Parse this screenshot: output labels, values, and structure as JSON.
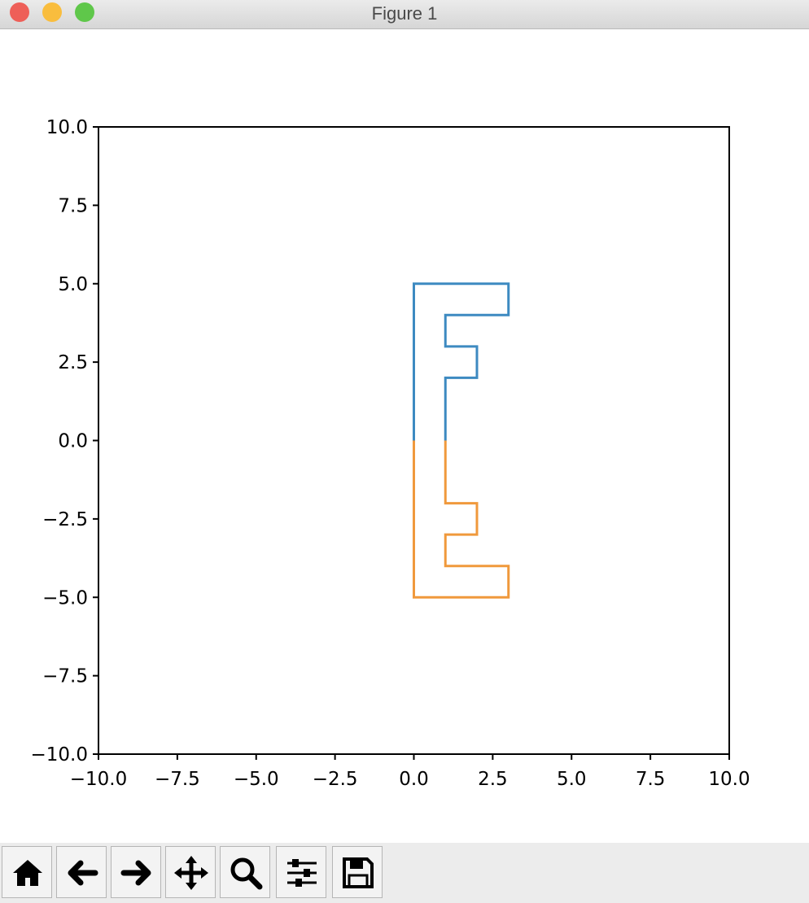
{
  "window_title": "Figure 1",
  "chart_data": {
    "type": "line",
    "xlim": [
      -10,
      10
    ],
    "ylim": [
      -10,
      10
    ],
    "xticks": [
      {
        "value": -10,
        "label": "−10.0"
      },
      {
        "value": -7.5,
        "label": "−7.5"
      },
      {
        "value": -5,
        "label": "−5.0"
      },
      {
        "value": -2.5,
        "label": "−2.5"
      },
      {
        "value": 0,
        "label": "0.0"
      },
      2.5,
      {
        "value": 5,
        "label": "5.0"
      },
      7.5,
      {
        "value": 10,
        "label": "10.0"
      }
    ],
    "yticks": [
      {
        "value": -10,
        "label": "−10.0"
      },
      {
        "value": -7.5,
        "label": "−7.5"
      },
      {
        "value": -5,
        "label": "−5.0"
      },
      {
        "value": -2.5,
        "label": "−2.5"
      },
      {
        "value": 0,
        "label": "0.0"
      },
      2.5,
      {
        "value": 5,
        "label": "5.0"
      },
      7.5,
      {
        "value": 10,
        "label": "10.0"
      }
    ],
    "grid": false,
    "series": [
      {
        "color": "#3d8ac1",
        "x": [
          0,
          0,
          3,
          3,
          1,
          1,
          2,
          2,
          1,
          1
        ],
        "values": [
          0,
          5,
          5,
          4,
          4,
          3,
          3,
          2,
          2,
          0
        ]
      },
      {
        "color": "#f0993c",
        "x": [
          0,
          0,
          3,
          3,
          1,
          1,
          2,
          2,
          1,
          1
        ],
        "values": [
          0,
          -5,
          -5,
          -4,
          -4,
          -3,
          -3,
          -2,
          -2,
          0
        ]
      }
    ]
  }
}
